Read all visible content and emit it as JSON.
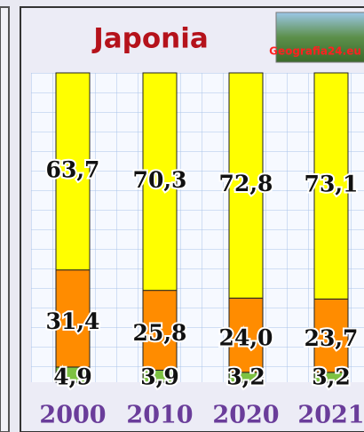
{
  "chart_data": {
    "type": "stacked_bar",
    "title": "Japonia",
    "logo_text": "Geografia24.eu",
    "categories": [
      "2000",
      "2010",
      "2020",
      "2021"
    ],
    "series": [
      {
        "color": "#7dc242",
        "values": [
          4.9,
          3.9,
          3.2,
          3.2
        ],
        "value_labels": [
          "4,9",
          "3,9",
          "3,2",
          "3,2"
        ]
      },
      {
        "color": "#ff8c00",
        "values": [
          31.4,
          25.8,
          24.0,
          23.7
        ],
        "value_labels": [
          "31,4",
          "25,8",
          "24,0",
          "23,7"
        ]
      },
      {
        "color": "#ffff00",
        "values": [
          63.7,
          70.3,
          72.8,
          73.1
        ],
        "value_labels": [
          "63,7",
          "70,3",
          "72,8",
          "73,1"
        ]
      }
    ],
    "ylim": [
      0,
      100
    ]
  }
}
